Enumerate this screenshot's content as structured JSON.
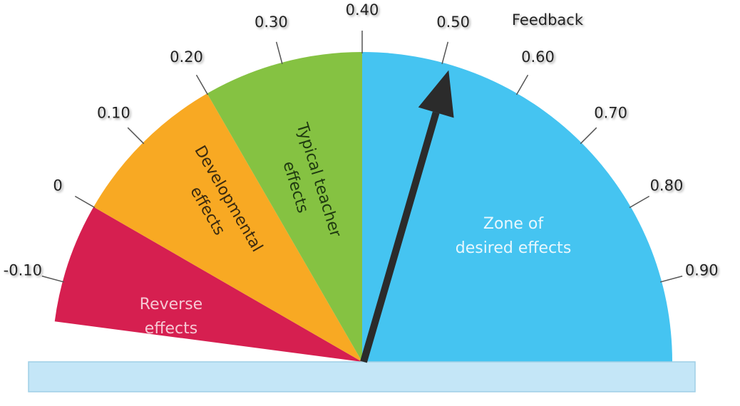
{
  "title": "Feedback",
  "scale": {
    "min": -0.15,
    "max": 1.05,
    "ticks": [
      -0.1,
      0,
      0.1,
      0.2,
      0.3,
      0.4,
      0.5,
      0.6,
      0.7,
      0.8,
      0.9
    ],
    "tick_labels": [
      "-0.10",
      "0",
      "0.10",
      "0.20",
      "0.30",
      "0.40",
      "0.50",
      "0.60",
      "0.70",
      "0.80",
      "0.90"
    ]
  },
  "zones": [
    {
      "id": "reverse",
      "from": -0.15,
      "to": 0.0,
      "color": "#d61f50",
      "text_color": "#f6c8d4",
      "lines": [
        "Reverse",
        "effects"
      ]
    },
    {
      "id": "developmental",
      "from": 0.0,
      "to": 0.2,
      "color": "#f8a923",
      "text_color": "#3a2a10",
      "lines": [
        "Developmental",
        "effects"
      ]
    },
    {
      "id": "typical",
      "from": 0.2,
      "to": 0.4,
      "color": "#85c242",
      "text_color": "#1f3a10",
      "lines": [
        "Typical teacher",
        "effects"
      ]
    },
    {
      "id": "desired",
      "from": 0.4,
      "to": 1.05,
      "color": "#45c4f1",
      "text_color": "#e8f7fd",
      "lines": [
        "Zone of",
        "desired effects"
      ]
    }
  ],
  "needle": {
    "label": "Feedback",
    "value": 0.51,
    "color": "#2b2b2b"
  },
  "base_color": "#c4e6f7"
}
